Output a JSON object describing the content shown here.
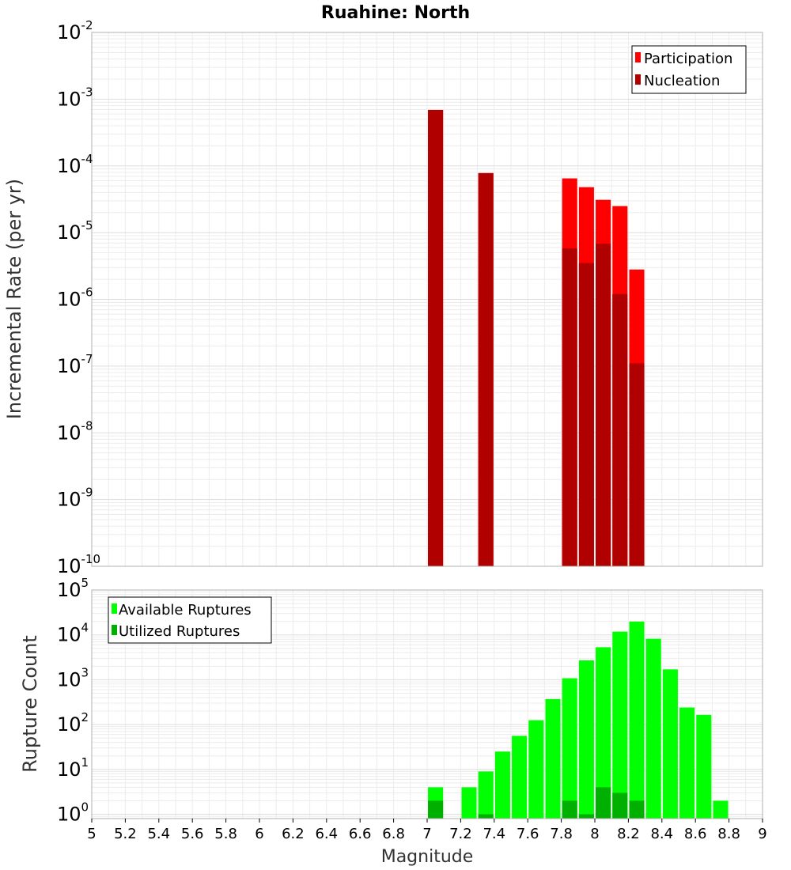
{
  "chart_data": [
    {
      "type": "bar",
      "title": "Ruahine: North",
      "xlabel": "",
      "ylabel": "Incremental Rate (per yr)",
      "yscale": "log",
      "xlim": [
        5,
        9
      ],
      "ylim": [
        1e-10,
        0.01
      ],
      "y_ticks": [
        {
          "base": "10",
          "exp": "-10"
        },
        {
          "base": "10",
          "exp": "-9"
        },
        {
          "base": "10",
          "exp": "-8"
        },
        {
          "base": "10",
          "exp": "-7"
        },
        {
          "base": "10",
          "exp": "-6"
        },
        {
          "base": "10",
          "exp": "-5"
        },
        {
          "base": "10",
          "exp": "-4"
        },
        {
          "base": "10",
          "exp": "-3"
        },
        {
          "base": "10",
          "exp": "-2"
        }
      ],
      "grid": true,
      "legend": "top-right",
      "series": [
        {
          "name": "Participation",
          "color": "#ff0000",
          "x": [
            7.05,
            7.35,
            7.85,
            7.95,
            8.05,
            8.15,
            8.25
          ],
          "values": [
            0.00069,
            7.8e-05,
            6.5e-05,
            4.8e-05,
            3.1e-05,
            2.5e-05,
            2.8e-06
          ]
        },
        {
          "name": "Nucleation",
          "color": "#b00000",
          "x": [
            7.05,
            7.35,
            7.85,
            7.95,
            8.05,
            8.15,
            8.25
          ],
          "values": [
            0.00069,
            7.8e-05,
            5.8e-06,
            3.5e-06,
            6.8e-06,
            1.2e-06,
            1.1e-07
          ]
        }
      ]
    },
    {
      "type": "bar",
      "title": "",
      "xlabel": "Magnitude",
      "ylabel": "Rupture Count",
      "yscale": "log",
      "xlim": [
        5,
        9
      ],
      "ylim": [
        0.8,
        100000
      ],
      "x_ticks": [
        "5",
        "5.2",
        "5.4",
        "5.6",
        "5.8",
        "6",
        "6.2",
        "6.4",
        "6.6",
        "6.8",
        "7",
        "7.2",
        "7.4",
        "7.6",
        "7.8",
        "8",
        "8.2",
        "8.4",
        "8.6",
        "8.8",
        "9"
      ],
      "y_ticks": [
        {
          "base": "10",
          "exp": "0"
        },
        {
          "base": "10",
          "exp": "1"
        },
        {
          "base": "10",
          "exp": "2"
        },
        {
          "base": "10",
          "exp": "3"
        },
        {
          "base": "10",
          "exp": "4"
        },
        {
          "base": "10",
          "exp": "5"
        }
      ],
      "grid": true,
      "legend": "top-left",
      "series": [
        {
          "name": "Available Ruptures",
          "color": "#00ff00",
          "x": [
            7.05,
            7.25,
            7.35,
            7.45,
            7.55,
            7.65,
            7.75,
            7.85,
            7.95,
            8.05,
            8.15,
            8.25,
            8.35,
            8.45,
            8.55,
            8.65,
            8.75
          ],
          "values": [
            4,
            4,
            9,
            25,
            56,
            125,
            370,
            1080,
            2700,
            5300,
            11800,
            19800,
            8200,
            1700,
            240,
            165,
            2
          ]
        },
        {
          "name": "Utilized Ruptures",
          "color": "#00b000",
          "x": [
            7.05,
            7.35,
            7.85,
            7.95,
            8.05,
            8.15,
            8.25
          ],
          "values": [
            2,
            1,
            2,
            1,
            4,
            3,
            2
          ]
        }
      ]
    }
  ]
}
